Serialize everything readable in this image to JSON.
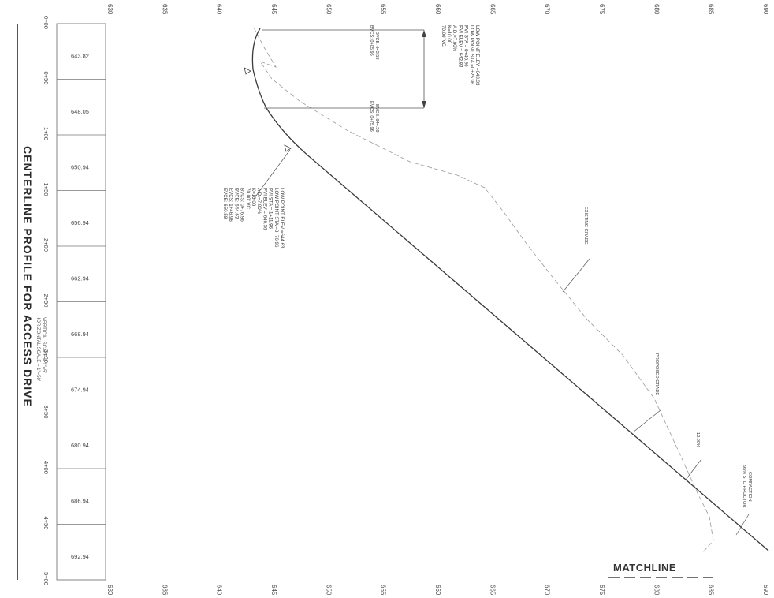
{
  "title": {
    "main": "CENTERLINE PROFILE FOR ACCESS DRIVE",
    "horizontal_scale": "HORIZONTAL SCALE = 1\"=50'",
    "vertical_scale": "VERTICAL SCALE = 1\"=5'"
  },
  "elevation_ticks": [
    "630",
    "635",
    "640",
    "645",
    "650",
    "655",
    "660",
    "665",
    "670",
    "675",
    "680",
    "685",
    "690"
  ],
  "stations": [
    "0+00",
    "0+50",
    "1+00",
    "1+50",
    "2+00",
    "2+50",
    "3+00",
    "3+50",
    "4+00",
    "4+50",
    "5+00"
  ],
  "station_elevations": [
    "643.82",
    "648.05",
    "650.94",
    "656.94",
    "662.94",
    "668.94",
    "674.94",
    "680.94",
    "686.94",
    "692.94"
  ],
  "curve1_notes": {
    "lines": [
      "LOW POINT ELEV =643.33",
      "LOW POINT STA =0+25.96",
      "PVI STA = 0+40.96",
      "PVI ELEV = 642.83",
      "A.D.=7.00%",
      "K=10.00",
      "70.00' VC"
    ],
    "bvcs": "BVCS: 0+05.96",
    "bvce": "BVCE: 643.53",
    "evcs": "EVCS: 0+75.96",
    "evce": "EVCE: 644.58"
  },
  "curve2_notes": {
    "lines": [
      "LOW POINT ELEV =644.63",
      "LOW POINT STA =0+76.96",
      "PVI STA = 1+11.96",
      "PVI ELEV = 646.36",
      "A.D.=7.00%",
      "K=10.00",
      "70.00' VC",
      "BVCS: 0+76.96",
      "BVCE: 644.63",
      "EVCS: 1+46.96",
      "EVCE: 650.58"
    ]
  },
  "labels": {
    "existing_grade": "EXISTING GRADE",
    "proposed_grade": "PROPOSED GRADE",
    "slope": "12.00%",
    "compaction": [
      "COMPACTION",
      "95% STD PROCTOR"
    ],
    "matchline": "MATCHLINE"
  }
}
